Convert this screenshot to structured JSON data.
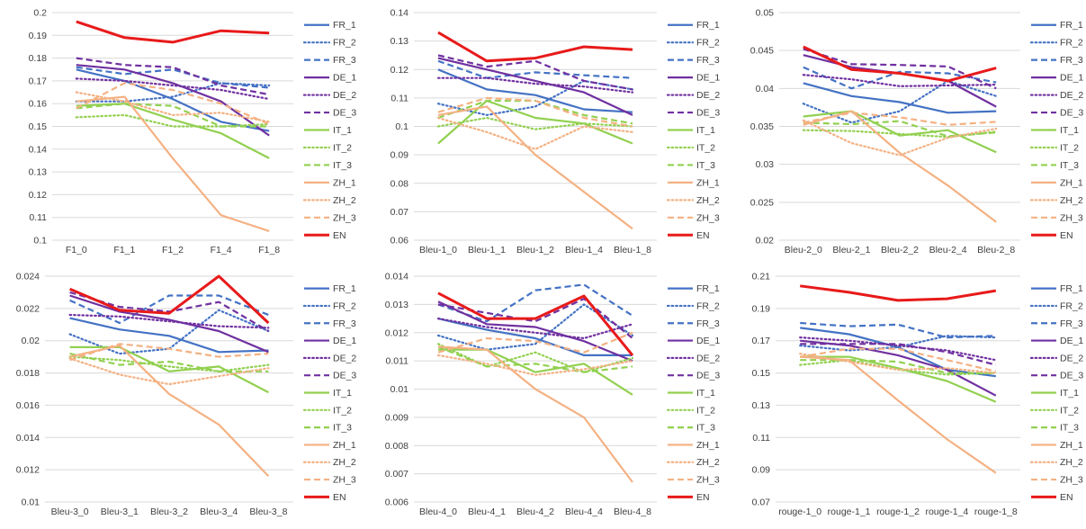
{
  "legend_labels": [
    "FR_1",
    "FR_2",
    "FR_3",
    "DE_1",
    "DE_2",
    "DE_3",
    "IT_1",
    "IT_2",
    "IT_3",
    "ZH_1",
    "ZH_2",
    "ZH_3",
    "EN"
  ],
  "series_styles": {
    "FR_1": {
      "color": "#4472C4",
      "dash": "solid"
    },
    "FR_2": {
      "color": "#4472C4",
      "dash": "dot"
    },
    "FR_3": {
      "color": "#4472C4",
      "dash": "dash"
    },
    "DE_1": {
      "color": "#7030A0",
      "dash": "solid"
    },
    "DE_2": {
      "color": "#7030A0",
      "dash": "dot"
    },
    "DE_3": {
      "color": "#7030A0",
      "dash": "dash"
    },
    "IT_1": {
      "color": "#92D050",
      "dash": "solid"
    },
    "IT_2": {
      "color": "#92D050",
      "dash": "dot"
    },
    "IT_3": {
      "color": "#92D050",
      "dash": "dash"
    },
    "ZH_1": {
      "color": "#F4B183",
      "dash": "solid"
    },
    "ZH_2": {
      "color": "#F4B183",
      "dash": "dot"
    },
    "ZH_3": {
      "color": "#F4B183",
      "dash": "dash"
    },
    "EN": {
      "color": "#E81A1A",
      "dash": "solid"
    }
  },
  "chart_data": [
    {
      "type": "line",
      "categories": [
        "F1_0",
        "F1_1",
        "F1_2",
        "F1_4",
        "F1_8"
      ],
      "ylim": [
        0.1,
        0.2
      ],
      "yticks": [
        "0.1",
        "0.11",
        "0.12",
        "0.13",
        "0.14",
        "0.15",
        "0.16",
        "0.17",
        "0.18",
        "0.19",
        "0.2"
      ],
      "legend": "right",
      "grid": true,
      "series": [
        {
          "name": "FR_1",
          "values": [
            0.175,
            0.17,
            0.162,
            0.152,
            0.148
          ]
        },
        {
          "name": "FR_2",
          "values": [
            0.161,
            0.161,
            0.163,
            0.169,
            0.168
          ]
        },
        {
          "name": "FR_3",
          "values": [
            0.176,
            0.173,
            0.175,
            0.169,
            0.167
          ]
        },
        {
          "name": "DE_1",
          "values": [
            0.177,
            0.175,
            0.169,
            0.161,
            0.146
          ]
        },
        {
          "name": "DE_2",
          "values": [
            0.171,
            0.17,
            0.168,
            0.166,
            0.162
          ]
        },
        {
          "name": "DE_3",
          "values": [
            0.18,
            0.177,
            0.176,
            0.168,
            0.164
          ]
        },
        {
          "name": "IT_1",
          "values": [
            0.159,
            0.16,
            0.153,
            0.147,
            0.136
          ]
        },
        {
          "name": "IT_2",
          "values": [
            0.154,
            0.155,
            0.15,
            0.15,
            0.151
          ]
        },
        {
          "name": "IT_3",
          "values": [
            0.158,
            0.16,
            0.159,
            0.15,
            0.15
          ]
        },
        {
          "name": "ZH_1",
          "values": [
            0.161,
            0.163,
            0.136,
            0.111,
            0.104
          ]
        },
        {
          "name": "ZH_2",
          "values": [
            0.165,
            0.161,
            0.155,
            0.156,
            0.152
          ]
        },
        {
          "name": "ZH_3",
          "values": [
            0.158,
            0.169,
            0.166,
            0.16,
            0.151
          ]
        },
        {
          "name": "EN",
          "values": [
            0.196,
            0.189,
            0.187,
            0.192,
            0.191
          ]
        }
      ]
    },
    {
      "type": "line",
      "categories": [
        "Bleu-1_0",
        "Bleu-1_1",
        "Bleu-1_2",
        "Bleu-1_4",
        "Bleu-1_8"
      ],
      "ylim": [
        0.06,
        0.14
      ],
      "yticks": [
        "0.06",
        "0.07",
        "0.08",
        "0.09",
        "0.1",
        "0.11",
        "0.12",
        "0.13",
        "0.14"
      ],
      "legend": "right",
      "grid": true,
      "series": [
        {
          "name": "FR_1",
          "values": [
            0.12,
            0.113,
            0.111,
            0.106,
            0.105
          ]
        },
        {
          "name": "FR_2",
          "values": [
            0.108,
            0.104,
            0.107,
            0.116,
            0.113
          ]
        },
        {
          "name": "FR_3",
          "values": [
            0.123,
            0.117,
            0.119,
            0.118,
            0.117
          ]
        },
        {
          "name": "DE_1",
          "values": [
            0.124,
            0.12,
            0.116,
            0.112,
            0.104
          ]
        },
        {
          "name": "DE_2",
          "values": [
            0.117,
            0.117,
            0.115,
            0.114,
            0.112
          ]
        },
        {
          "name": "DE_3",
          "values": [
            0.125,
            0.121,
            0.123,
            0.116,
            0.113
          ]
        },
        {
          "name": "IT_1",
          "values": [
            0.094,
            0.109,
            0.103,
            0.101,
            0.094
          ]
        },
        {
          "name": "IT_2",
          "values": [
            0.1,
            0.103,
            0.099,
            0.101,
            0.1
          ]
        },
        {
          "name": "IT_3",
          "values": [
            0.103,
            0.109,
            0.109,
            0.104,
            0.101
          ]
        },
        {
          "name": "ZH_1",
          "values": [
            0.104,
            0.107,
            0.09,
            0.077,
            0.064
          ]
        },
        {
          "name": "ZH_2",
          "values": [
            0.103,
            0.098,
            0.092,
            0.1,
            0.098
          ]
        },
        {
          "name": "ZH_3",
          "values": [
            0.105,
            0.11,
            0.109,
            0.103,
            0.1
          ]
        },
        {
          "name": "EN",
          "values": [
            0.133,
            0.123,
            0.124,
            0.128,
            0.127
          ]
        }
      ]
    },
    {
      "type": "line",
      "categories": [
        "Bleu-2_0",
        "Bleu-2_1",
        "Bleu-2_2",
        "Bleu-2_4",
        "Bleu-2_8"
      ],
      "ylim": [
        0.02,
        0.05
      ],
      "yticks": [
        "0.02",
        "0.025",
        "0.03",
        "0.035",
        "0.04",
        "0.045",
        "0.05"
      ],
      "legend": "right",
      "grid": true,
      "series": [
        {
          "name": "FR_1",
          "values": [
            0.0407,
            0.039,
            0.0382,
            0.0368,
            0.037
          ]
        },
        {
          "name": "FR_2",
          "values": [
            0.038,
            0.0355,
            0.037,
            0.041,
            0.039
          ]
        },
        {
          "name": "FR_3",
          "values": [
            0.0428,
            0.04,
            0.0422,
            0.042,
            0.0408
          ]
        },
        {
          "name": "DE_1",
          "values": [
            0.0444,
            0.0428,
            0.042,
            0.041,
            0.0376
          ]
        },
        {
          "name": "DE_2",
          "values": [
            0.0418,
            0.0412,
            0.0403,
            0.0404,
            0.0405
          ]
        },
        {
          "name": "DE_3",
          "values": [
            0.0452,
            0.0432,
            0.0431,
            0.0429,
            0.04
          ]
        },
        {
          "name": "IT_1",
          "values": [
            0.0363,
            0.037,
            0.0338,
            0.0345,
            0.0316
          ]
        },
        {
          "name": "IT_2",
          "values": [
            0.0345,
            0.0344,
            0.034,
            0.0336,
            0.0343
          ]
        },
        {
          "name": "IT_3",
          "values": [
            0.0355,
            0.0353,
            0.0357,
            0.0337,
            0.0342
          ]
        },
        {
          "name": "ZH_1",
          "values": [
            0.0352,
            0.037,
            0.0315,
            0.0272,
            0.0224
          ]
        },
        {
          "name": "ZH_2",
          "values": [
            0.0358,
            0.0328,
            0.0312,
            0.0335,
            0.0347
          ]
        },
        {
          "name": "ZH_3",
          "values": [
            0.0355,
            0.0368,
            0.0362,
            0.0352,
            0.0356
          ]
        },
        {
          "name": "EN",
          "values": [
            0.0455,
            0.0425,
            0.042,
            0.041,
            0.0427
          ]
        }
      ]
    },
    {
      "type": "line",
      "categories": [
        "Bleu-3_0",
        "Bleu-3_1",
        "Bleu-3_2",
        "Bleu-3_4",
        "Bleu-3_8"
      ],
      "ylim": [
        0.01,
        0.024
      ],
      "yticks": [
        "0.01",
        "0.012",
        "0.014",
        "0.016",
        "0.018",
        "0.02",
        "0.022",
        "0.024"
      ],
      "legend": "right",
      "grid": true,
      "series": [
        {
          "name": "FR_1",
          "values": [
            0.0214,
            0.0207,
            0.0203,
            0.0193,
            0.0194
          ]
        },
        {
          "name": "FR_2",
          "values": [
            0.0204,
            0.0192,
            0.0195,
            0.0219,
            0.0206
          ]
        },
        {
          "name": "FR_3",
          "values": [
            0.0225,
            0.0211,
            0.0228,
            0.0228,
            0.0216
          ]
        },
        {
          "name": "DE_1",
          "values": [
            0.0228,
            0.0218,
            0.0213,
            0.0206,
            0.0193
          ]
        },
        {
          "name": "DE_2",
          "values": [
            0.0216,
            0.0215,
            0.0212,
            0.0209,
            0.0208
          ]
        },
        {
          "name": "DE_3",
          "values": [
            0.023,
            0.0221,
            0.0218,
            0.0224,
            0.0206
          ]
        },
        {
          "name": "IT_1",
          "values": [
            0.0196,
            0.0196,
            0.0181,
            0.0184,
            0.0168
          ]
        },
        {
          "name": "IT_2",
          "values": [
            0.019,
            0.0188,
            0.0184,
            0.0181,
            0.0185
          ]
        },
        {
          "name": "IT_3",
          "values": [
            0.0192,
            0.0185,
            0.0187,
            0.0181,
            0.0181
          ]
        },
        {
          "name": "ZH_1",
          "values": [
            0.019,
            0.0197,
            0.0167,
            0.0148,
            0.0116
          ]
        },
        {
          "name": "ZH_2",
          "values": [
            0.0189,
            0.0179,
            0.0173,
            0.0178,
            0.0183
          ]
        },
        {
          "name": "ZH_3",
          "values": [
            0.0188,
            0.0198,
            0.0195,
            0.019,
            0.0192
          ]
        },
        {
          "name": "EN",
          "values": [
            0.0232,
            0.0219,
            0.0217,
            0.024,
            0.0211
          ]
        }
      ]
    },
    {
      "type": "line",
      "categories": [
        "Bleu-4_0",
        "Bleu-4_1",
        "Bleu-4_2",
        "Bleu-4_4",
        "Bleu-4_8"
      ],
      "ylim": [
        0.006,
        0.014
      ],
      "yticks": [
        "0.006",
        "0.007",
        "0.008",
        "0.009",
        "0.01",
        "0.011",
        "0.012",
        "0.013",
        "0.014"
      ],
      "legend": "right",
      "grid": true,
      "series": [
        {
          "name": "FR_1",
          "values": [
            0.0125,
            0.0121,
            0.0118,
            0.0112,
            0.0112
          ]
        },
        {
          "name": "FR_2",
          "values": [
            0.0119,
            0.0114,
            0.0116,
            0.013,
            0.0119
          ]
        },
        {
          "name": "FR_3",
          "values": [
            0.013,
            0.0124,
            0.0135,
            0.0137,
            0.0126
          ]
        },
        {
          "name": "DE_1",
          "values": [
            0.0131,
            0.0123,
            0.0122,
            0.0117,
            0.011
          ]
        },
        {
          "name": "DE_2",
          "values": [
            0.0125,
            0.0122,
            0.012,
            0.0118,
            0.0123
          ]
        },
        {
          "name": "DE_3",
          "values": [
            0.013,
            0.0127,
            0.0124,
            0.0132,
            0.0118
          ]
        },
        {
          "name": "IT_1",
          "values": [
            0.0114,
            0.0114,
            0.0106,
            0.0109,
            0.0098
          ]
        },
        {
          "name": "IT_2",
          "values": [
            0.0116,
            0.0108,
            0.0113,
            0.0106,
            0.0111
          ]
        },
        {
          "name": "IT_3",
          "values": [
            0.0115,
            0.0108,
            0.0109,
            0.0106,
            0.0108
          ]
        },
        {
          "name": "ZH_1",
          "values": [
            0.0115,
            0.0114,
            0.01,
            0.009,
            0.0067
          ]
        },
        {
          "name": "ZH_2",
          "values": [
            0.0112,
            0.0109,
            0.0105,
            0.0107,
            0.011
          ]
        },
        {
          "name": "ZH_3",
          "values": [
            0.0113,
            0.0118,
            0.0117,
            0.0113,
            0.012
          ]
        },
        {
          "name": "EN",
          "values": [
            0.0134,
            0.0125,
            0.0125,
            0.0133,
            0.0112
          ]
        }
      ]
    },
    {
      "type": "line",
      "categories": [
        "rouge-1_0",
        "rouge-1_1",
        "rouge-1_2",
        "rouge-1_4",
        "rouge-1_8"
      ],
      "ylim": [
        0.07,
        0.21
      ],
      "yticks": [
        "0.07",
        "0.09",
        "0.11",
        "0.13",
        "0.15",
        "0.17",
        "0.19",
        "0.21"
      ],
      "legend": "right",
      "grid": true,
      "series": [
        {
          "name": "FR_1",
          "values": [
            0.178,
            0.174,
            0.166,
            0.152,
            0.148
          ]
        },
        {
          "name": "FR_2",
          "values": [
            0.167,
            0.164,
            0.166,
            0.173,
            0.172
          ]
        },
        {
          "name": "FR_3",
          "values": [
            0.181,
            0.179,
            0.18,
            0.172,
            0.173
          ]
        },
        {
          "name": "DE_1",
          "values": [
            0.17,
            0.167,
            0.161,
            0.152,
            0.136
          ]
        },
        {
          "name": "DE_2",
          "values": [
            0.172,
            0.17,
            0.167,
            0.164,
            0.158
          ]
        },
        {
          "name": "DE_3",
          "values": [
            0.168,
            0.168,
            0.168,
            0.163,
            0.155
          ]
        },
        {
          "name": "IT_1",
          "values": [
            0.16,
            0.16,
            0.153,
            0.145,
            0.132
          ]
        },
        {
          "name": "IT_2",
          "values": [
            0.155,
            0.158,
            0.152,
            0.149,
            0.15
          ]
        },
        {
          "name": "IT_3",
          "values": [
            0.158,
            0.158,
            0.157,
            0.15,
            0.15
          ]
        },
        {
          "name": "ZH_1",
          "values": [
            0.16,
            0.158,
            0.133,
            0.109,
            0.088
          ]
        },
        {
          "name": "ZH_2",
          "values": [
            0.162,
            0.157,
            0.152,
            0.153,
            0.15
          ]
        },
        {
          "name": "ZH_3",
          "values": [
            0.16,
            0.165,
            0.165,
            0.158,
            0.151
          ]
        },
        {
          "name": "EN",
          "values": [
            0.204,
            0.2,
            0.195,
            0.196,
            0.201
          ]
        }
      ]
    }
  ]
}
